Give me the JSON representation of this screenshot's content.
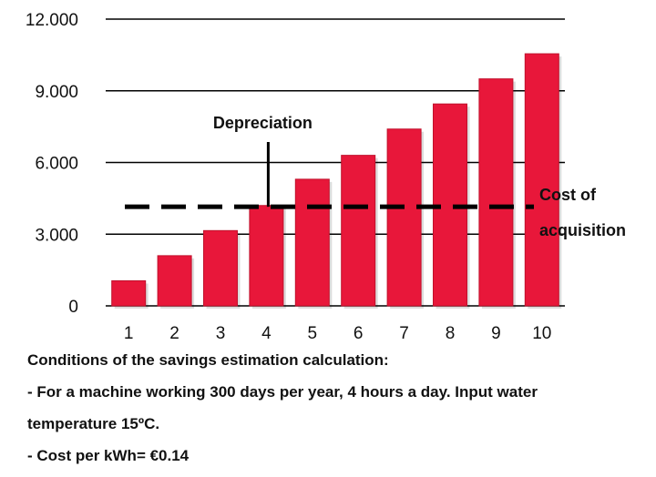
{
  "chart_data": {
    "type": "bar",
    "categories": [
      "1",
      "2",
      "3",
      "4",
      "5",
      "6",
      "7",
      "8",
      "9",
      "10"
    ],
    "values": [
      1050,
      2100,
      3150,
      4200,
      5300,
      6300,
      7400,
      8450,
      9500,
      10550
    ],
    "ylim": [
      0,
      12000
    ],
    "yticks": [
      0,
      3000,
      6000,
      9000,
      12000
    ],
    "ytick_labels": [
      "0",
      "3.000",
      "6.000",
      "9.000",
      "12.000"
    ],
    "grid": true,
    "bar_color": "#e8173a",
    "bar_edge_color": "#c0112c",
    "reference_line": {
      "value": 4150,
      "style": "dashed",
      "color": "#000000",
      "label_line1": "Cost of",
      "label_line2": "acquisition"
    },
    "annotation": {
      "label": "Depreciation",
      "category": "4"
    }
  },
  "notes": {
    "heading": "Conditions of the savings estimation calculation:",
    "line1": "- For a machine working 300 days per year, 4 hours a day. Input water",
    "line2": "temperature 15ºC.",
    "line3": "- Cost per kWh= €0.14"
  }
}
